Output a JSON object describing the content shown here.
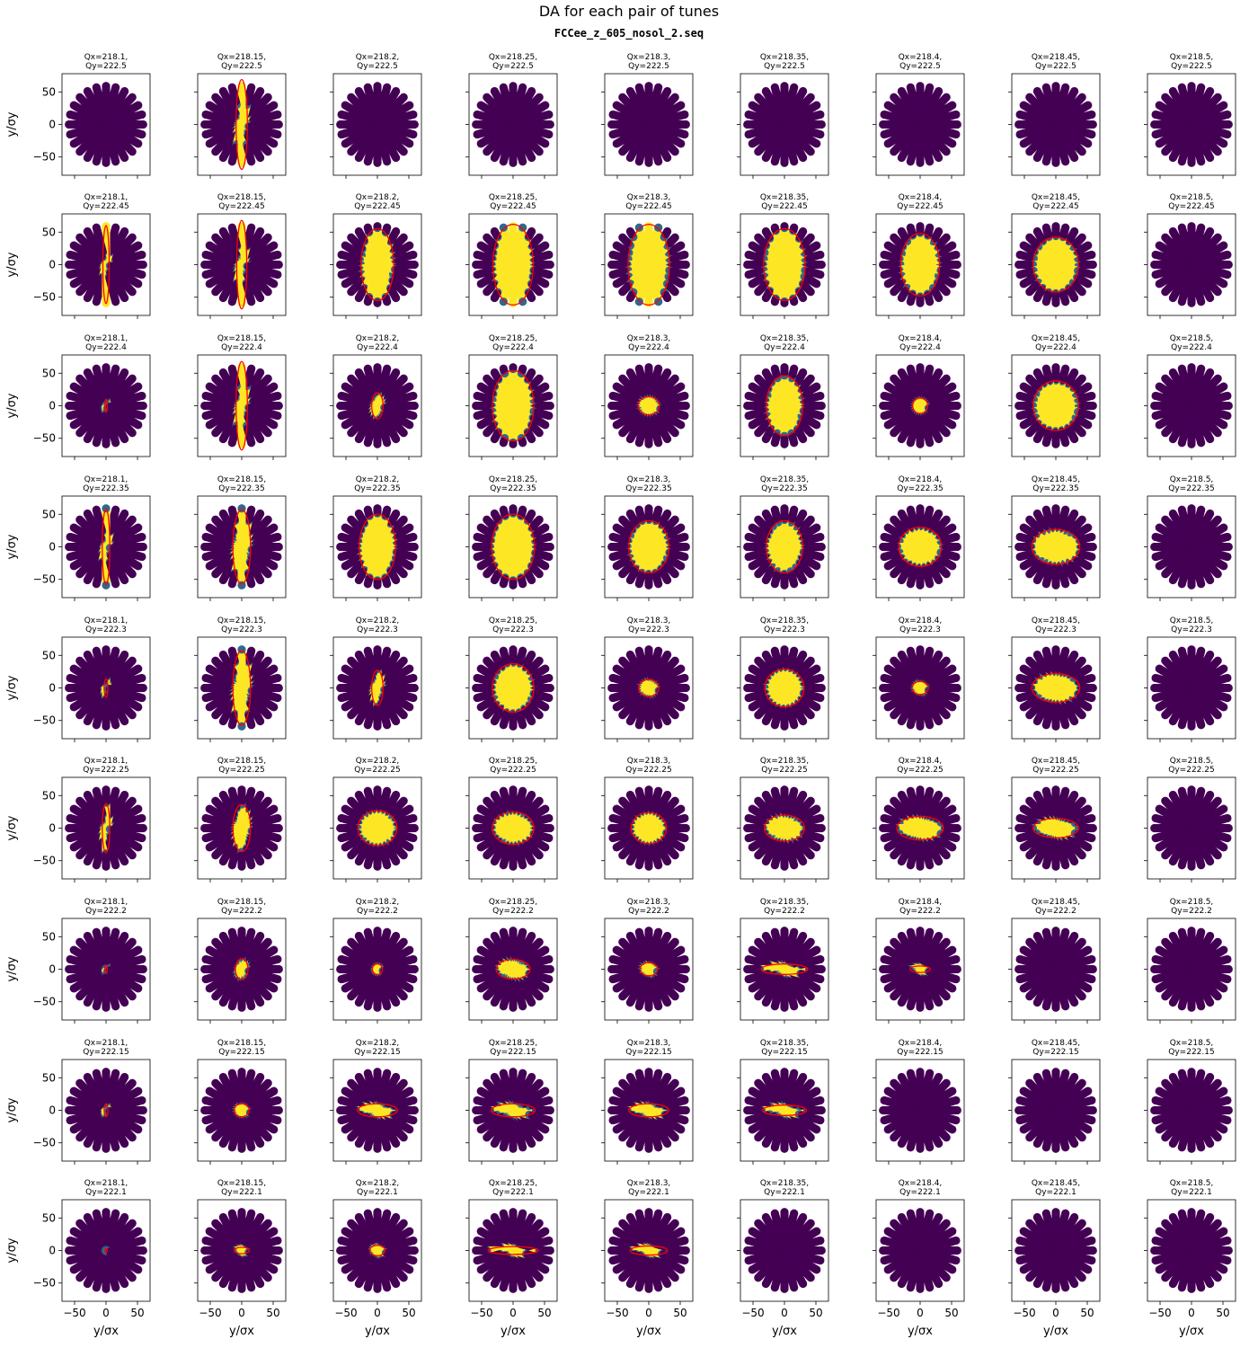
{
  "figure": {
    "title": "DA for each pair of tunes",
    "subtitle": "FCCee_z_605_nosol_2.seq",
    "xlabel": "y/σx",
    "ylabel": "y/σy"
  },
  "colors": {
    "lost": "#440154",
    "edge": "#31688e",
    "mid": "#21908c",
    "survived": "#fde725",
    "fit": "#ff0000"
  },
  "chart_data": {
    "type": "scatter",
    "title": "DA for each pair of tunes",
    "subtitle": "FCCee_z_605_nosol_2.seq",
    "xlabel": "y/σx",
    "ylabel": "y/σy",
    "xlim": [
      -70,
      70
    ],
    "ylim": [
      -78,
      78
    ],
    "xticks": [
      -50,
      0,
      50
    ],
    "yticks": [
      -50,
      0,
      50
    ],
    "rays": 24,
    "rmax": 60,
    "grid": false,
    "qx": [
      "218.1",
      "218.15",
      "218.2",
      "218.25",
      "218.3",
      "218.35",
      "218.4",
      "218.45",
      "218.5"
    ],
    "qy": [
      "222.5",
      "222.45",
      "222.4",
      "222.35",
      "222.3",
      "222.25",
      "222.2",
      "222.15",
      "222.1"
    ],
    "da_ellipse_ax": [
      [
        0,
        9,
        0,
        0,
        0,
        0,
        0,
        0,
        0
      ],
      [
        5,
        8,
        26,
        32,
        33,
        33,
        31,
        36,
        0
      ],
      [
        2,
        9,
        9,
        33,
        17,
        29,
        12,
        36,
        0
      ],
      [
        6,
        14,
        29,
        34,
        32,
        29,
        34,
        38,
        0
      ],
      [
        3,
        14,
        9,
        33,
        16,
        31,
        13,
        38,
        0
      ],
      [
        6,
        14,
        31,
        33,
        28,
        32,
        37,
        36,
        0
      ],
      [
        2,
        10,
        8,
        27,
        14,
        37,
        16,
        0,
        0
      ],
      [
        3,
        12,
        32,
        35,
        32,
        35,
        0,
        0,
        0
      ],
      [
        2,
        12,
        12,
        40,
        30,
        0,
        0,
        0,
        0
      ]
    ],
    "da_ellipse_ay": [
      [
        0,
        69,
        0,
        0,
        0,
        0,
        0,
        0,
        0
      ],
      [
        60,
        68,
        55,
        62,
        62,
        55,
        48,
        42,
        0
      ],
      [
        10,
        68,
        20,
        54,
        14,
        46,
        12,
        38,
        0
      ],
      [
        58,
        57,
        50,
        50,
        40,
        40,
        30,
        27,
        0
      ],
      [
        14,
        57,
        27,
        37,
        13,
        29,
        10,
        22,
        0
      ],
      [
        38,
        36,
        27,
        25,
        24,
        20,
        18,
        15,
        0
      ],
      [
        6,
        16,
        8,
        15,
        10,
        8,
        5,
        0,
        0
      ],
      [
        10,
        10,
        10,
        10,
        10,
        8,
        0,
        0,
        0
      ],
      [
        3,
        5,
        8,
        6,
        7,
        0,
        0,
        0,
        0
      ]
    ]
  }
}
